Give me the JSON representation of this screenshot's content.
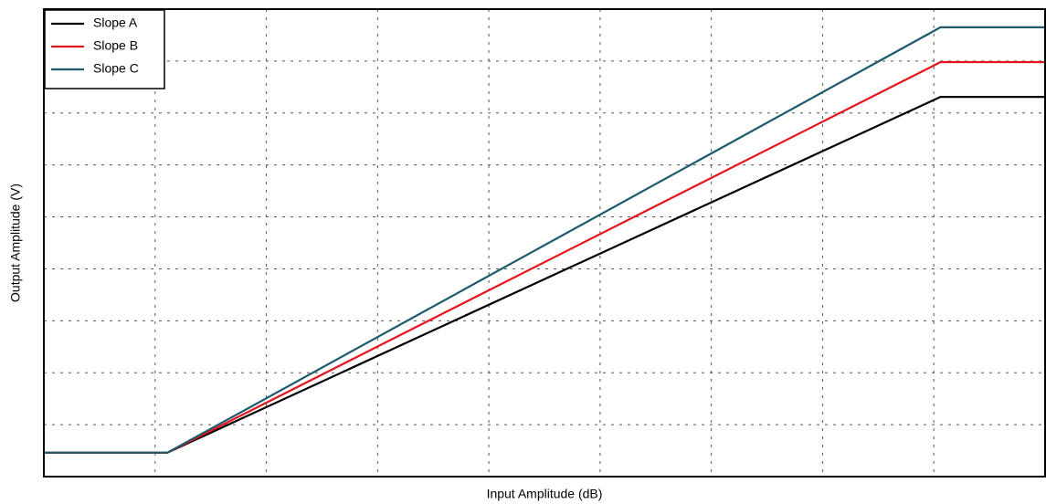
{
  "chart_data": {
    "type": "line",
    "x_label": "Input Amplitude (dB)",
    "y_label": "Output Amplitude (V)",
    "x": [
      0,
      1.11,
      8.06,
      9
    ],
    "series": [
      {
        "name": "Slope A",
        "color": "#000000",
        "values": [
          0.46,
          0.46,
          7.31,
          7.31
        ]
      },
      {
        "name": "Slope B",
        "color": "#e8141c",
        "values": [
          0.46,
          0.46,
          7.98,
          7.98
        ]
      },
      {
        "name": "Slope C",
        "color": "#1d5a6c",
        "values": [
          0.46,
          0.46,
          8.65,
          8.65
        ]
      }
    ],
    "xlim": [
      0,
      9
    ],
    "ylim": [
      0,
      9
    ],
    "xticks": [
      1,
      2,
      3,
      4,
      5,
      6,
      7,
      8
    ],
    "yticks": [
      1,
      2,
      3,
      4,
      5,
      6,
      7,
      8
    ],
    "grid": true,
    "legend": "upper left"
  }
}
